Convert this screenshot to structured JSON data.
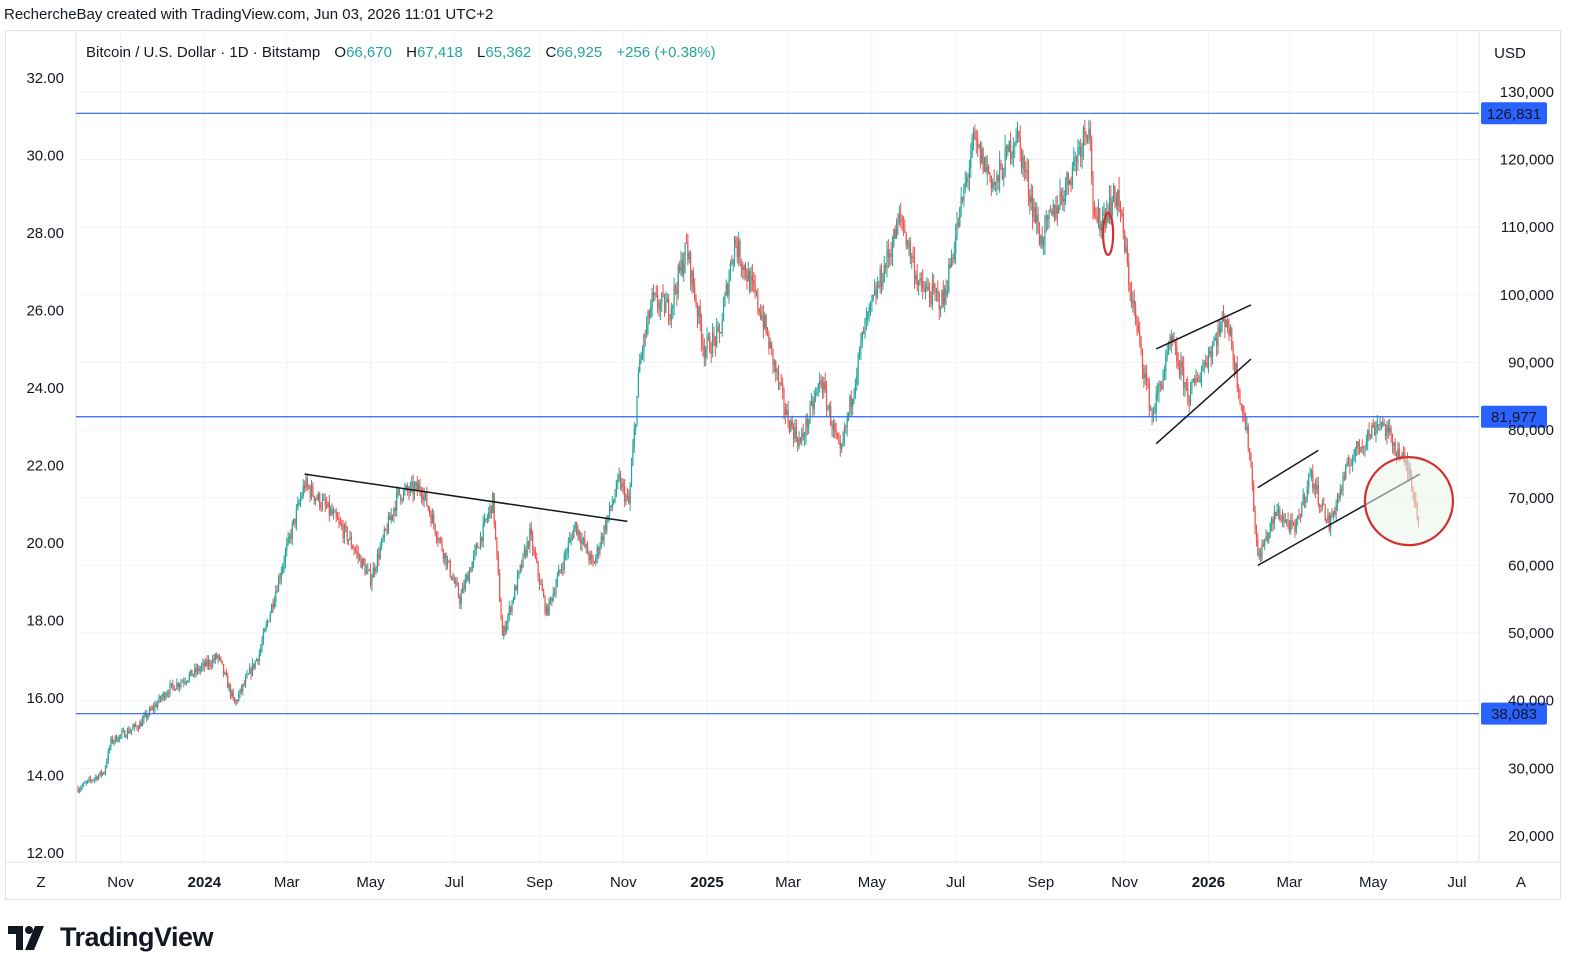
{
  "header": {
    "text": "RechercheBay created with TradingView.com, Jun 03, 2026 11:01 UTC+2"
  },
  "brand": {
    "name": "TradingView"
  },
  "colors": {
    "up": "#26a69a",
    "down": "#ef5350",
    "hline": "#2962ff",
    "annot": "#131722",
    "circle": "#d32f2f"
  },
  "chart_data": {
    "type": "candlestick",
    "symbol": "Bitcoin / U.S. Dollar · 1D · Bitstamp",
    "ohlc": {
      "open_label": "O",
      "open": "66,670",
      "high_label": "H",
      "high": "67,418",
      "low_label": "L",
      "low": "65,362",
      "close_label": "C",
      "close": "66,925",
      "change": "+256 (+0.38%)"
    },
    "currency": "USD",
    "y_left_ticks": [
      "32.00",
      "30.00",
      "28.00",
      "26.00",
      "24.00",
      "22.00",
      "20.00",
      "18.00",
      "16.00",
      "14.00",
      "12.00"
    ],
    "y_left_values": [
      32,
      30,
      28,
      26,
      24,
      22,
      20,
      18,
      16,
      14,
      12
    ],
    "y_right_ticks": [
      "130,000",
      "120,000",
      "110,000",
      "100,000",
      "90,000",
      "80,000",
      "70,000",
      "60,000",
      "50,000",
      "40,000",
      "30,000",
      "20,000"
    ],
    "y_right_values": [
      130000,
      120000,
      110000,
      100000,
      90000,
      80000,
      70000,
      60000,
      50000,
      40000,
      30000,
      20000
    ],
    "x_ticks": [
      {
        "label": "Nov",
        "bold": false,
        "date": "2023-11-01"
      },
      {
        "label": "2024",
        "bold": true,
        "date": "2024-01-01"
      },
      {
        "label": "Mar",
        "bold": false,
        "date": "2024-03-01"
      },
      {
        "label": "May",
        "bold": false,
        "date": "2024-05-01"
      },
      {
        "label": "Jul",
        "bold": false,
        "date": "2024-07-01"
      },
      {
        "label": "Sep",
        "bold": false,
        "date": "2024-09-01"
      },
      {
        "label": "Nov",
        "bold": false,
        "date": "2024-11-01"
      },
      {
        "label": "2025",
        "bold": true,
        "date": "2025-01-01"
      },
      {
        "label": "Mar",
        "bold": false,
        "date": "2025-03-01"
      },
      {
        "label": "May",
        "bold": false,
        "date": "2025-05-01"
      },
      {
        "label": "Jul",
        "bold": false,
        "date": "2025-07-01"
      },
      {
        "label": "Sep",
        "bold": false,
        "date": "2025-09-01"
      },
      {
        "label": "Nov",
        "bold": false,
        "date": "2025-11-01"
      },
      {
        "label": "2026",
        "bold": true,
        "date": "2026-01-01"
      },
      {
        "label": "Mar",
        "bold": false,
        "date": "2026-03-01"
      },
      {
        "label": "May",
        "bold": false,
        "date": "2026-05-01"
      },
      {
        "label": "Jul",
        "bold": false,
        "date": "2026-07-01"
      }
    ],
    "horizontal_levels": [
      {
        "label": "126,831",
        "value": 126831
      },
      {
        "label": "81,977",
        "value": 81977
      },
      {
        "label": "38,083",
        "value": 38083
      }
    ],
    "price_path": [
      [
        "2023-10-01",
        27000
      ],
      [
        "2023-10-20",
        29500
      ],
      [
        "2023-10-25",
        34000
      ],
      [
        "2023-11-15",
        36500
      ],
      [
        "2023-12-05",
        41500
      ],
      [
        "2024-01-11",
        46500
      ],
      [
        "2024-01-23",
        39500
      ],
      [
        "2024-02-10",
        47000
      ],
      [
        "2024-02-28",
        61000
      ],
      [
        "2024-03-14",
        72000
      ],
      [
        "2024-04-01",
        68000
      ],
      [
        "2024-04-15",
        64000
      ],
      [
        "2024-05-01",
        58000
      ],
      [
        "2024-05-21",
        70500
      ],
      [
        "2024-06-07",
        71500
      ],
      [
        "2024-07-05",
        55000
      ],
      [
        "2024-07-29",
        69500
      ],
      [
        "2024-08-05",
        49500
      ],
      [
        "2024-08-25",
        64500
      ],
      [
        "2024-09-06",
        53000
      ],
      [
        "2024-09-27",
        66000
      ],
      [
        "2024-10-10",
        60000
      ],
      [
        "2024-10-29",
        72500
      ],
      [
        "2024-11-05",
        69000
      ],
      [
        "2024-11-13",
        90000
      ],
      [
        "2024-11-22",
        99000
      ],
      [
        "2024-12-05",
        98000
      ],
      [
        "2024-12-17",
        107000
      ],
      [
        "2024-12-30",
        92000
      ],
      [
        "2025-01-10",
        94000
      ],
      [
        "2025-01-21",
        108000
      ],
      [
        "2025-02-10",
        97000
      ],
      [
        "2025-02-28",
        82000
      ],
      [
        "2025-03-10",
        78000
      ],
      [
        "2025-03-25",
        87500
      ],
      [
        "2025-04-08",
        76000
      ],
      [
        "2025-04-25",
        94500
      ],
      [
        "2025-05-22",
        111500
      ],
      [
        "2025-06-05",
        101000
      ],
      [
        "2025-06-22",
        99000
      ],
      [
        "2025-07-14",
        122500
      ],
      [
        "2025-07-30",
        116000
      ],
      [
        "2025-08-14",
        124000
      ],
      [
        "2025-09-01",
        108000
      ],
      [
        "2025-09-20",
        116500
      ],
      [
        "2025-10-06",
        126000
      ],
      [
        "2025-10-10",
        110000
      ],
      [
        "2025-10-27",
        115000
      ],
      [
        "2025-11-05",
        101000
      ],
      [
        "2025-11-21",
        82000
      ],
      [
        "2025-12-05",
        93000
      ],
      [
        "2025-12-18",
        85000
      ],
      [
        "2026-01-14",
        97000
      ],
      [
        "2026-01-31",
        77000
      ],
      [
        "2026-02-06",
        61000
      ],
      [
        "2026-02-20",
        68000
      ],
      [
        "2026-03-05",
        65000
      ],
      [
        "2026-03-16",
        73500
      ],
      [
        "2026-03-30",
        66000
      ],
      [
        "2026-04-15",
        76000
      ],
      [
        "2026-05-06",
        81500
      ],
      [
        "2026-05-20",
        76500
      ],
      [
        "2026-05-28",
        73500
      ],
      [
        "2026-06-03",
        66925
      ]
    ],
    "annotations": [
      {
        "type": "arc",
        "label": "top-1"
      },
      {
        "type": "arc",
        "label": "top-2"
      },
      {
        "type": "arc",
        "label": "top-3"
      },
      {
        "type": "trendline",
        "label": "descending-resistance-2024"
      },
      {
        "type": "channel",
        "label": "rising-wedge-dec-2025"
      },
      {
        "type": "channel",
        "label": "rising-channel-2026"
      },
      {
        "type": "circle",
        "label": "breakdown-circle"
      },
      {
        "type": "ellipse",
        "label": "october-drop-marker"
      }
    ]
  },
  "axis_controls": {
    "left": "Z",
    "right": "A"
  }
}
